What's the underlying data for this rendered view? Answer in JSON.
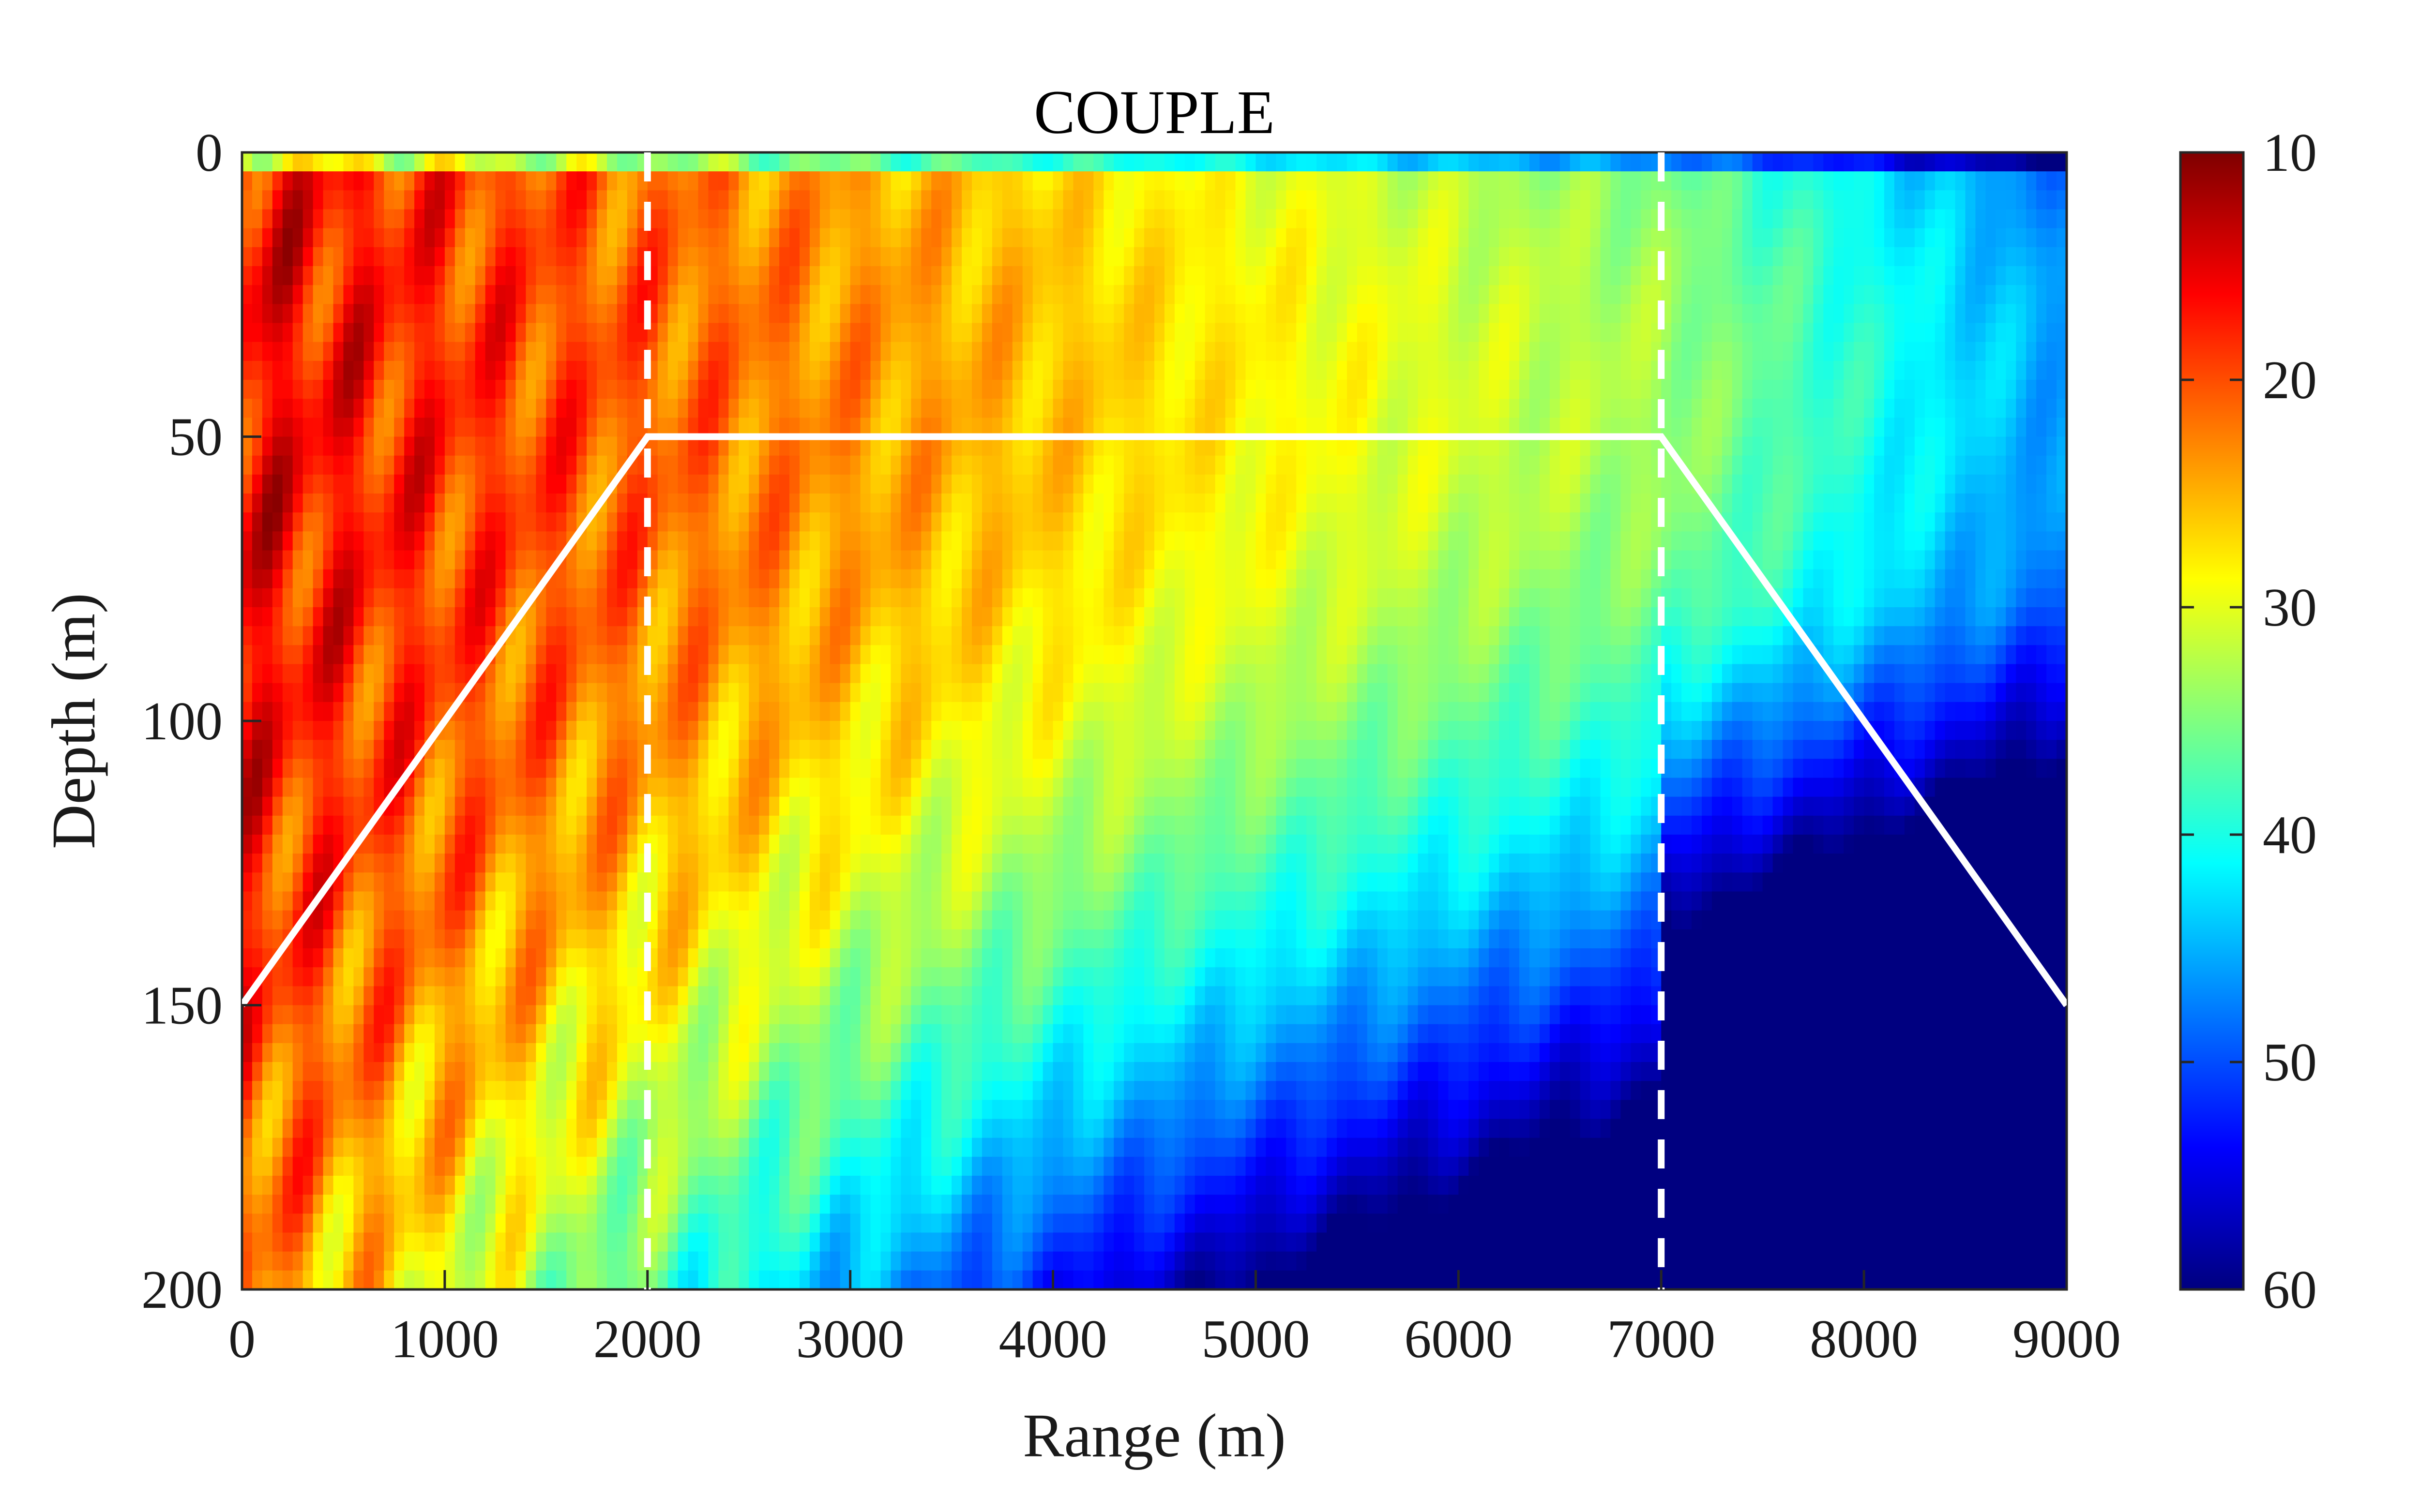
{
  "chart_data": {
    "type": "heatmap",
    "title": "COUPLE",
    "xlabel": "Range (m)",
    "ylabel": "Depth (m)",
    "xlim": [
      0,
      9000
    ],
    "ylim": [
      0,
      200
    ],
    "y_reversed": true,
    "x_ticks": [
      "0",
      "1000",
      "2000",
      "3000",
      "4000",
      "5000",
      "6000",
      "7000",
      "8000",
      "9000"
    ],
    "y_ticks": [
      "0",
      "50",
      "100",
      "150",
      "200"
    ],
    "colorbar": {
      "colormap": "jet",
      "reversed": true,
      "range": [
        10,
        60
      ],
      "ticks": [
        "10",
        "20",
        "30",
        "40",
        "50",
        "60"
      ]
    },
    "bathymetry": {
      "x": [
        0,
        2000,
        7000,
        9000
      ],
      "y": [
        150,
        50,
        50,
        150
      ],
      "color": "#ffffff"
    },
    "segment_boundaries": [
      2000,
      7000
    ],
    "grid": false
  }
}
